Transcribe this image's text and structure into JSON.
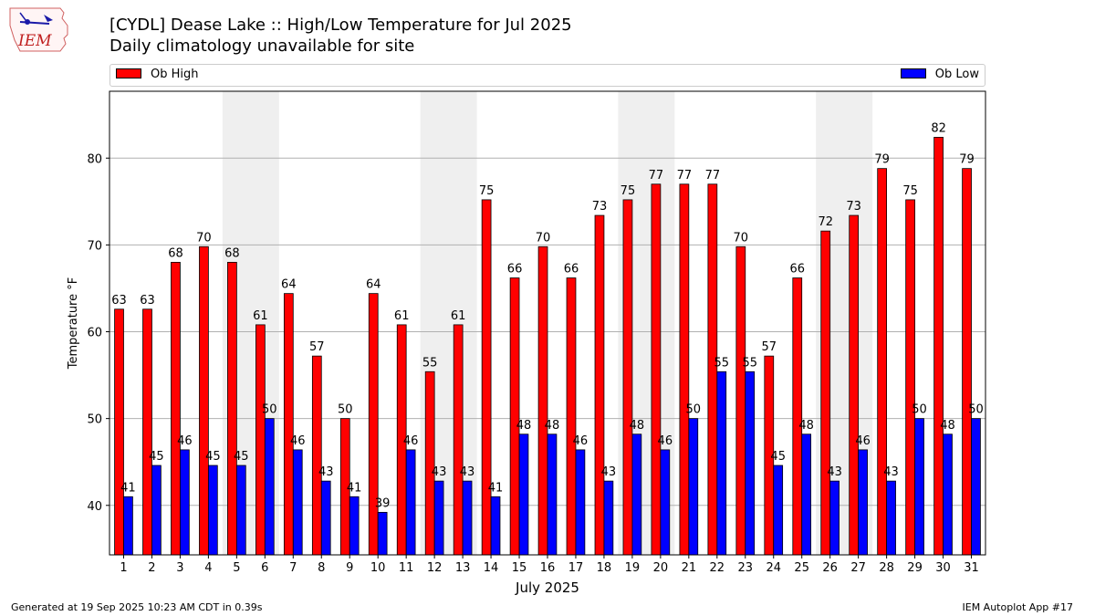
{
  "header": {
    "logo_text": "IEM",
    "title_line1": "[CYDL] Dease Lake :: High/Low Temperature for Jul 2025",
    "title_line2": "Daily climatology unavailable for site"
  },
  "footer": {
    "generated": "Generated at 19 Sep 2025 10:23 AM CDT in 0.39s",
    "app": "IEM Autoplot App #17"
  },
  "chart_data": {
    "type": "bar",
    "xlabel": "July 2025",
    "ylabel": "Temperature °F",
    "ylim": [
      34.3,
      87.7
    ],
    "yticks": [
      40,
      50,
      60,
      70,
      80
    ],
    "grid": "horizontal",
    "legend_placement": "top",
    "weekend_shading": [
      [
        5,
        6
      ],
      [
        12,
        13
      ],
      [
        19,
        20
      ],
      [
        26,
        27
      ]
    ],
    "categories": [
      "1",
      "2",
      "3",
      "4",
      "5",
      "6",
      "7",
      "8",
      "9",
      "10",
      "11",
      "12",
      "13",
      "14",
      "15",
      "16",
      "17",
      "18",
      "19",
      "20",
      "21",
      "22",
      "23",
      "24",
      "25",
      "26",
      "27",
      "28",
      "29",
      "30",
      "31"
    ],
    "series": [
      {
        "name": "Ob High",
        "color": "#ff0000",
        "values": [
          62.6,
          62.6,
          68.0,
          69.8,
          68.0,
          60.8,
          64.4,
          57.2,
          50.0,
          64.4,
          60.8,
          55.4,
          60.8,
          75.2,
          66.2,
          69.8,
          66.2,
          73.4,
          75.2,
          77.0,
          77.0,
          77.0,
          69.8,
          57.2,
          66.2,
          71.6,
          73.4,
          78.8,
          75.2,
          82.4,
          78.8
        ],
        "labels": [
          "63",
          "63",
          "68",
          "70",
          "68",
          "61",
          "64",
          "57",
          "50",
          "64",
          "61",
          "55",
          "61",
          "75",
          "66",
          "70",
          "66",
          "73",
          "75",
          "77",
          "77",
          "77",
          "70",
          "57",
          "66",
          "72",
          "73",
          "79",
          "75",
          "82",
          "79"
        ]
      },
      {
        "name": "Ob Low",
        "color": "#0000ff",
        "values": [
          41.0,
          44.6,
          46.4,
          44.6,
          44.6,
          50.0,
          46.4,
          42.8,
          41.0,
          39.2,
          46.4,
          42.8,
          42.8,
          41.0,
          48.2,
          48.2,
          46.4,
          42.8,
          48.2,
          46.4,
          50.0,
          55.4,
          55.4,
          44.6,
          48.2,
          42.8,
          46.4,
          42.8,
          50.0,
          48.2,
          50.0
        ],
        "labels": [
          "41",
          "45",
          "46",
          "45",
          "45",
          "50",
          "46",
          "43",
          "41",
          "39",
          "46",
          "43",
          "43",
          "41",
          "48",
          "48",
          "46",
          "43",
          "48",
          "46",
          "50",
          "55",
          "55",
          "45",
          "48",
          "43",
          "46",
          "43",
          "50",
          "48",
          "50"
        ]
      }
    ]
  }
}
